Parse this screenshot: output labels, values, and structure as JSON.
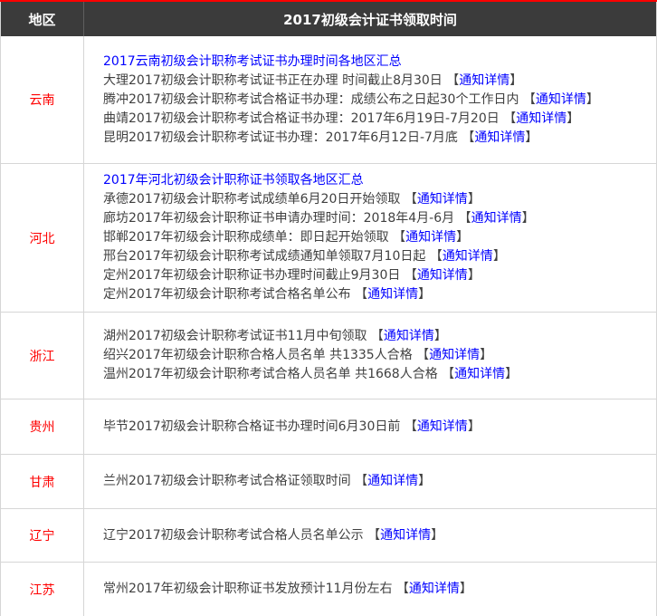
{
  "colors": {
    "accent_red": "#fe0000",
    "link_blue": "#0101ff",
    "header_bg": "#3b3b3b",
    "border_gray": "#d6d6d6",
    "body_text": "#404040"
  },
  "symbols": {
    "bracket_open": "【",
    "bracket_close": "】"
  },
  "table": {
    "header": {
      "region": "地区",
      "title": "2017初级会计证书领取时间"
    },
    "rows": [
      {
        "region": "云南",
        "lines": [
          {
            "type": "summary",
            "text": "2017云南初级会计职称考试证书办理时间各地区汇总"
          },
          {
            "type": "item",
            "text": "大理2017初级会计职称考试证书正在办理 时间截止8月30日 ",
            "link": "通知详情"
          },
          {
            "type": "item",
            "text": "腾冲2017初级会计职称考试合格证书办理：成绩公布之日起30个工作日内 ",
            "link": "通知详情"
          },
          {
            "type": "item",
            "text": "曲靖2017初级会计职称考试合格证书办理：2017年6月19日-7月20日 ",
            "link": "通知详情"
          },
          {
            "type": "item",
            "text": "昆明2017初级会计职称考试证书办理：2017年6月12日-7月底 ",
            "link": "通知详情"
          }
        ]
      },
      {
        "region": "河北",
        "lines": [
          {
            "type": "summary",
            "text": "2017年河北初级会计职称证书领取各地区汇总"
          },
          {
            "type": "item",
            "text": "承德2017初级会计职称考试成绩单6月20日开始领取 ",
            "link": "通知详情"
          },
          {
            "type": "item",
            "text": "廊坊2017年初级会计职称证书申请办理时间：2018年4月-6月 ",
            "link": "通知详情"
          },
          {
            "type": "item",
            "text": "邯郸2017年初级会计职称成绩单：即日起开始领取 ",
            "link": "通知详情"
          },
          {
            "type": "item",
            "text": "邢台2017年初级会计职称考试成绩通知单领取7月10日起 ",
            "link": "通知详情"
          },
          {
            "type": "item",
            "text": "定州2017年初级会计职称证书办理时间截止9月30日 ",
            "link": "通知详情"
          },
          {
            "type": "item",
            "text": "定州2017年初级会计职称考试合格名单公布 ",
            "link": "通知详情"
          }
        ]
      },
      {
        "region": "浙江",
        "lines": [
          {
            "type": "item",
            "text": "湖州2017初级会计职称考试证书11月中旬领取 ",
            "link": "通知详情"
          },
          {
            "type": "item",
            "text": "绍兴2017年初级会计职称合格人员名单 共1335人合格 ",
            "link": "通知详情"
          },
          {
            "type": "item",
            "text": "温州2017年初级会计职称考试合格人员名单 共1668人合格 ",
            "link": "通知详情"
          }
        ]
      },
      {
        "region": "贵州",
        "lines": [
          {
            "type": "item",
            "text": "毕节2017初级会计职称合格证书办理时间6月30日前 ",
            "link": "通知详情"
          }
        ]
      },
      {
        "region": "甘肃",
        "lines": [
          {
            "type": "item",
            "text": "兰州2017初级会计职称考试合格证领取时间 ",
            "link": "通知详情"
          }
        ]
      },
      {
        "region": "辽宁",
        "lines": [
          {
            "type": "item",
            "text": "辽宁2017初级会计职称考试合格人员名单公示 ",
            "link": "通知详情"
          }
        ]
      },
      {
        "region": "江苏",
        "lines": [
          {
            "type": "item",
            "text": "常州2017年初级会计职称证书发放预计11月份左右 ",
            "link": "通知详情"
          }
        ]
      }
    ]
  }
}
